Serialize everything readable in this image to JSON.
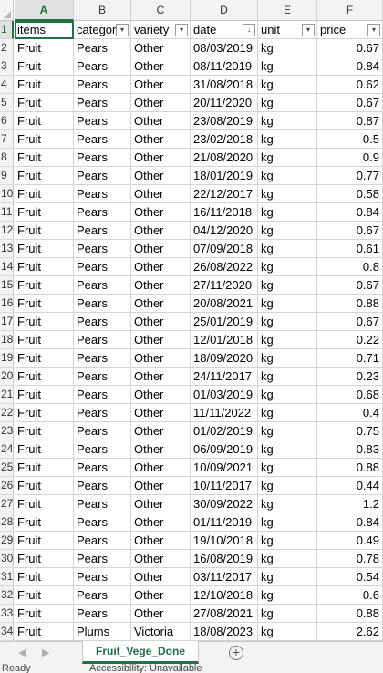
{
  "columns": [
    "A",
    "B",
    "C",
    "D",
    "E",
    "F"
  ],
  "headers": [
    "items",
    "category",
    "variety",
    "date",
    "unit",
    "price"
  ],
  "filter_glyphs": [
    "▾",
    "▾",
    "▾",
    "↓",
    "▾",
    "▾"
  ],
  "rows": [
    [
      "Fruit",
      "Pears",
      "Other",
      "08/03/2019",
      "kg",
      "0.67"
    ],
    [
      "Fruit",
      "Pears",
      "Other",
      "08/11/2019",
      "kg",
      "0.84"
    ],
    [
      "Fruit",
      "Pears",
      "Other",
      "31/08/2018",
      "kg",
      "0.62"
    ],
    [
      "Fruit",
      "Pears",
      "Other",
      "20/11/2020",
      "kg",
      "0.67"
    ],
    [
      "Fruit",
      "Pears",
      "Other",
      "23/08/2019",
      "kg",
      "0.87"
    ],
    [
      "Fruit",
      "Pears",
      "Other",
      "23/02/2018",
      "kg",
      "0.5"
    ],
    [
      "Fruit",
      "Pears",
      "Other",
      "21/08/2020",
      "kg",
      "0.9"
    ],
    [
      "Fruit",
      "Pears",
      "Other",
      "18/01/2019",
      "kg",
      "0.77"
    ],
    [
      "Fruit",
      "Pears",
      "Other",
      "22/12/2017",
      "kg",
      "0.58"
    ],
    [
      "Fruit",
      "Pears",
      "Other",
      "16/11/2018",
      "kg",
      "0.84"
    ],
    [
      "Fruit",
      "Pears",
      "Other",
      "04/12/2020",
      "kg",
      "0.67"
    ],
    [
      "Fruit",
      "Pears",
      "Other",
      "07/09/2018",
      "kg",
      "0.61"
    ],
    [
      "Fruit",
      "Pears",
      "Other",
      "26/08/2022",
      "kg",
      "0.8"
    ],
    [
      "Fruit",
      "Pears",
      "Other",
      "27/11/2020",
      "kg",
      "0.67"
    ],
    [
      "Fruit",
      "Pears",
      "Other",
      "20/08/2021",
      "kg",
      "0.88"
    ],
    [
      "Fruit",
      "Pears",
      "Other",
      "25/01/2019",
      "kg",
      "0.67"
    ],
    [
      "Fruit",
      "Pears",
      "Other",
      "12/01/2018",
      "kg",
      "0.22"
    ],
    [
      "Fruit",
      "Pears",
      "Other",
      "18/09/2020",
      "kg",
      "0.71"
    ],
    [
      "Fruit",
      "Pears",
      "Other",
      "24/11/2017",
      "kg",
      "0.23"
    ],
    [
      "Fruit",
      "Pears",
      "Other",
      "01/03/2019",
      "kg",
      "0.68"
    ],
    [
      "Fruit",
      "Pears",
      "Other",
      "11/11/2022",
      "kg",
      "0.4"
    ],
    [
      "Fruit",
      "Pears",
      "Other",
      "01/02/2019",
      "kg",
      "0.75"
    ],
    [
      "Fruit",
      "Pears",
      "Other",
      "06/09/2019",
      "kg",
      "0.83"
    ],
    [
      "Fruit",
      "Pears",
      "Other",
      "10/09/2021",
      "kg",
      "0.88"
    ],
    [
      "Fruit",
      "Pears",
      "Other",
      "10/11/2017",
      "kg",
      "0.44"
    ],
    [
      "Fruit",
      "Pears",
      "Other",
      "30/09/2022",
      "kg",
      "1.2"
    ],
    [
      "Fruit",
      "Pears",
      "Other",
      "01/11/2019",
      "kg",
      "0.84"
    ],
    [
      "Fruit",
      "Pears",
      "Other",
      "19/10/2018",
      "kg",
      "0.49"
    ],
    [
      "Fruit",
      "Pears",
      "Other",
      "16/08/2019",
      "kg",
      "0.78"
    ],
    [
      "Fruit",
      "Pears",
      "Other",
      "03/11/2017",
      "kg",
      "0.54"
    ],
    [
      "Fruit",
      "Pears",
      "Other",
      "12/10/2018",
      "kg",
      "0.6"
    ],
    [
      "Fruit",
      "Pears",
      "Other",
      "27/08/2021",
      "kg",
      "0.88"
    ],
    [
      "Fruit",
      "Plums",
      "Victoria",
      "18/08/2023",
      "kg",
      "2.62"
    ]
  ],
  "sheet": {
    "tab_label": "Fruit_Vege_Done",
    "add_label": "+",
    "prev_arrow": "◀",
    "next_arrow": "▶"
  },
  "status": {
    "ready": "Ready",
    "accessibility": "Accessibility: Unavailable"
  },
  "colors": {
    "accent": "#217346",
    "gridline": "#d4d4d4",
    "header_bg": "#f3f3f3"
  }
}
